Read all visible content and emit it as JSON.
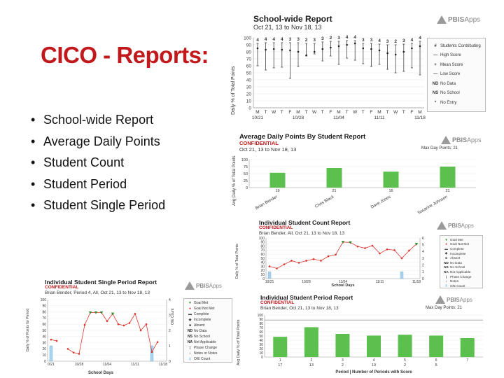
{
  "slide": {
    "title": "CICO - Reports:",
    "bullets": [
      "School-wide Report",
      "Average Daily Points",
      "Student Count",
      "Student Period",
      "Student Single Period"
    ]
  },
  "logo": {
    "brand": "PBIS",
    "suffix": "Apps"
  },
  "colors": {
    "title": "#c0181b",
    "confidential": "#c0181b",
    "bar": "#5cc04e",
    "line": "#d9332b",
    "goal_marker": "#2e8b2e",
    "incident_bar": "#a9d3ef"
  },
  "schoolwide": {
    "title": "School-wide Report",
    "subtitle": "Oct 21, 13 to Nov 18, 13",
    "ylabel": "Daily % of Total Points",
    "legend": [
      {
        "code": "#",
        "label": "Students Contributing"
      },
      {
        "code": "—",
        "label": "High Score"
      },
      {
        "code": "+",
        "label": "Mean Score"
      },
      {
        "code": "—",
        "label": "Low Score"
      },
      {
        "code": "ND",
        "label": "No Data"
      },
      {
        "code": "NS",
        "label": "No School"
      },
      {
        "code": "*",
        "label": "No Entry"
      }
    ]
  },
  "avg_daily": {
    "title": "Average Daily Points By Student Report",
    "confidential": "CONFIDENTIAL",
    "subtitle": "Oct 21, 13 to Nov 18, 13",
    "right_note": "Max Day Points: 21",
    "ylabel": "Avg Daily % of Total Points"
  },
  "count_report": {
    "title": "Individual Student Count Report",
    "confidential": "CONFIDENTIAL",
    "subtitle": "Brian Bender, All, Oct 21, 13 to Nov 18, 13",
    "xlabel": "School Days",
    "ylabel": "Daily % of Total Points",
    "legend": [
      "Goal Met",
      "Goal Not Met",
      "Complete",
      "Incomplete",
      "Absent",
      "No Data",
      "No School",
      "Not Applicable",
      "Phase Change",
      "Notes",
      "O/E Count"
    ]
  },
  "single_period": {
    "title": "Individual Student Single Period Report",
    "confidential": "CONFIDENTIAL",
    "subtitle": "Brian Bender, Period 4, All, Oct 21, 13 to Nov 18, 13",
    "xlabel": "School Days",
    "ylabel": "Daily % of Points for Period",
    "y2label": "O/E Count",
    "legend": [
      "Goal Met",
      "Goal Not Met",
      "Complete",
      "Incomplete",
      "Absent",
      "No Data",
      "No School",
      "Not Applicable",
      "Phase Change",
      "Notes or Notes",
      "O/E Count"
    ]
  },
  "period_report": {
    "title": "Individual Student Period Report",
    "confidential": "CONFIDENTIAL",
    "subtitle": "Brian Bender, Oct 21, 13 to Nov 18, 13",
    "right_note": "Max Day Points: 21",
    "xlabel": "Period | Number of Periods with Score",
    "ylabel": "Avg Daily % of Total Points"
  },
  "chart_data": [
    {
      "type": "line",
      "name": "school-wide",
      "title": "School-wide Report",
      "x_tick_top": [
        "M",
        "T",
        "W",
        "T",
        "F",
        "M",
        "T",
        "W",
        "T",
        "F",
        "M",
        "T",
        "W",
        "T",
        "F",
        "M",
        "T",
        "W",
        "T",
        "F",
        "M"
      ],
      "x_tick_dates": [
        "10/21",
        "10/28",
        "11/04",
        "11/11",
        "11/18"
      ],
      "ylim": [
        0,
        100
      ],
      "yticks": [
        0,
        10,
        20,
        30,
        40,
        50,
        60,
        70,
        80,
        90,
        100
      ],
      "students_contributing": [
        4,
        4,
        4,
        4,
        3,
        3,
        2,
        3,
        3,
        2,
        3,
        4,
        4,
        3,
        3,
        4,
        3,
        2,
        3,
        4,
        4
      ],
      "high": [
        92,
        93,
        93,
        93,
        93,
        93,
        92,
        92,
        94,
        95,
        95,
        96,
        96,
        92,
        92,
        91,
        90,
        90,
        91,
        92,
        95
      ],
      "mean": [
        85,
        83,
        84,
        83,
        82,
        80,
        75,
        80,
        84,
        86,
        88,
        90,
        92,
        85,
        84,
        82,
        78,
        76,
        80,
        85,
        88
      ],
      "low": [
        60,
        54,
        57,
        58,
        42,
        59,
        74,
        77,
        67,
        74,
        62,
        71,
        68,
        63,
        59,
        62,
        55,
        50,
        52,
        57,
        47
      ]
    },
    {
      "type": "bar",
      "name": "average-daily-points",
      "title": "Average Daily Points By Student Report",
      "ylim": [
        0,
        100
      ],
      "yticks": [
        0,
        25,
        50,
        75,
        100
      ],
      "categories": [
        "Brian Bender",
        "Chris Black",
        "Dave Jones",
        "Susanne Johnson"
      ],
      "x_counts": [
        "19",
        "21",
        "16",
        "21"
      ],
      "values": [
        53,
        70,
        57,
        75
      ]
    },
    {
      "type": "line",
      "name": "student-count",
      "title": "Individual Student Count Report",
      "ylim": [
        0,
        100
      ],
      "yticks": [
        0,
        10,
        20,
        30,
        40,
        50,
        60,
        70,
        80,
        90,
        100
      ],
      "y2ticks": [
        0,
        1,
        2,
        3,
        4,
        5,
        6
      ],
      "x_tick_dates": [
        "10/21",
        "10/28",
        "11/04",
        "11/11",
        "11/18"
      ],
      "values": [
        30,
        25,
        35,
        44,
        39,
        44,
        48,
        44,
        55,
        59,
        90,
        89,
        79,
        75,
        81,
        62,
        72,
        70,
        50,
        69,
        85
      ],
      "goal_met_index": [
        10,
        11,
        20
      ],
      "incident_counts": [
        1,
        0,
        0,
        0,
        0,
        0,
        0,
        0,
        0,
        0,
        0,
        0,
        0,
        0,
        0,
        0,
        0,
        0,
        1,
        0,
        0
      ]
    },
    {
      "type": "line",
      "name": "student-single-period",
      "title": "Individual Student Single Period Report",
      "ylim": [
        0,
        100
      ],
      "yticks": [
        0,
        10,
        20,
        30,
        40,
        50,
        60,
        70,
        80,
        90,
        100
      ],
      "y2ticks": [
        0,
        1,
        2,
        3,
        4
      ],
      "x_tick_dates": [
        "0/21",
        "10/28",
        "11/04",
        "11/11",
        "11/18"
      ],
      "values": [
        35,
        33,
        null,
        20,
        14,
        12,
        59,
        79,
        79,
        79,
        65,
        77,
        60,
        58,
        62,
        77,
        50,
        60,
        15,
        31,
        null
      ],
      "goal_met_index": [
        7,
        8,
        9,
        11
      ],
      "incident_counts": [
        1,
        0,
        0,
        0,
        0,
        0,
        0,
        0,
        0,
        0,
        0,
        0,
        0,
        0,
        0,
        0,
        0,
        0,
        1,
        0,
        0
      ]
    },
    {
      "type": "bar",
      "name": "student-period",
      "title": "Individual Student Period Report",
      "ylim": [
        0,
        100
      ],
      "yticks": [
        0,
        10,
        20,
        30,
        40,
        50,
        60,
        70,
        80,
        90,
        100
      ],
      "categories": [
        "1",
        "2",
        "3",
        "4",
        "5",
        "6",
        "7"
      ],
      "x_counts": [
        "17",
        "13",
        "2",
        "10",
        "2",
        "5",
        ""
      ],
      "values": [
        48,
        71,
        55,
        51,
        53,
        51,
        45
      ]
    }
  ]
}
